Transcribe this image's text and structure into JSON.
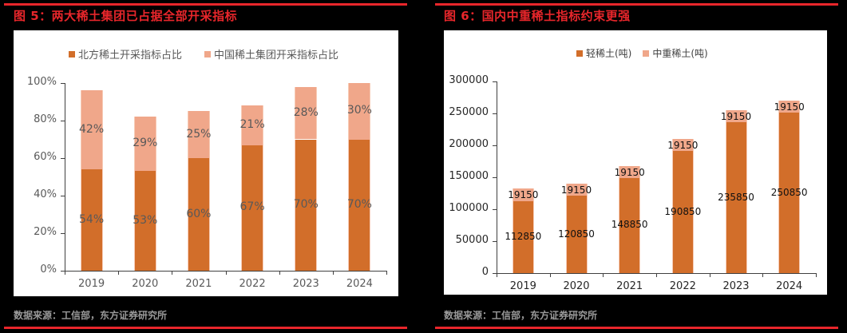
{
  "figures": [
    {
      "title": "图 5：两大稀土集团已占据全部开采指标",
      "source": "数据来源：工信部，东方证券研究所",
      "legend": [
        "北方稀土开采指标占比",
        "中国稀土集团开采指标占比"
      ]
    },
    {
      "title": "图 6：国内中重稀土指标约束更强",
      "source": "数据来源：工信部，东方证券研究所",
      "legend": [
        "轻稀土(吨)",
        "中重稀土(吨)"
      ]
    }
  ],
  "colors": {
    "dark": "#d26e2a",
    "light": "#f0a78a",
    "accent_red": "#e8262b"
  },
  "chart_data": [
    {
      "type": "bar",
      "stacked": true,
      "title": "图 5：两大稀土集团已占据全部开采指标",
      "categories": [
        "2019",
        "2020",
        "2021",
        "2022",
        "2023",
        "2024"
      ],
      "series": [
        {
          "name": "北方稀土开采指标占比",
          "values": [
            54,
            53,
            60,
            67,
            70,
            70
          ],
          "labels": [
            "54%",
            "53%",
            "60%",
            "67%",
            "70%",
            "70%"
          ]
        },
        {
          "name": "中国稀土集团开采指标占比",
          "values": [
            42,
            29,
            25,
            21,
            28,
            30
          ],
          "labels": [
            "42%",
            "29%",
            "25%",
            "21%",
            "28%",
            "30%"
          ]
        }
      ],
      "yticks": [
        "0%",
        "20%",
        "40%",
        "60%",
        "80%",
        "100%"
      ],
      "ylim": [
        0,
        100
      ],
      "xlabel": "",
      "ylabel": "",
      "legend_position": "top",
      "grid": false
    },
    {
      "type": "bar",
      "stacked": true,
      "title": "图 6：国内中重稀土指标约束更强",
      "categories": [
        "2019",
        "2020",
        "2021",
        "2022",
        "2023",
        "2024"
      ],
      "series": [
        {
          "name": "轻稀土(吨)",
          "values": [
            112850,
            120850,
            148850,
            190850,
            235850,
            250850
          ],
          "labels": [
            "112850",
            "120850",
            "148850",
            "190850",
            "235850",
            "250850"
          ]
        },
        {
          "name": "中重稀土(吨)",
          "values": [
            19150,
            19150,
            19150,
            19150,
            19150,
            19150
          ],
          "labels": [
            "19150",
            "19150",
            "19150",
            "19150",
            "19150",
            "19150"
          ]
        }
      ],
      "yticks": [
        "0",
        "50000",
        "100000",
        "150000",
        "200000",
        "250000",
        "300000"
      ],
      "ylim": [
        0,
        300000
      ],
      "xlabel": "",
      "ylabel": "",
      "legend_position": "top",
      "grid": false
    }
  ]
}
